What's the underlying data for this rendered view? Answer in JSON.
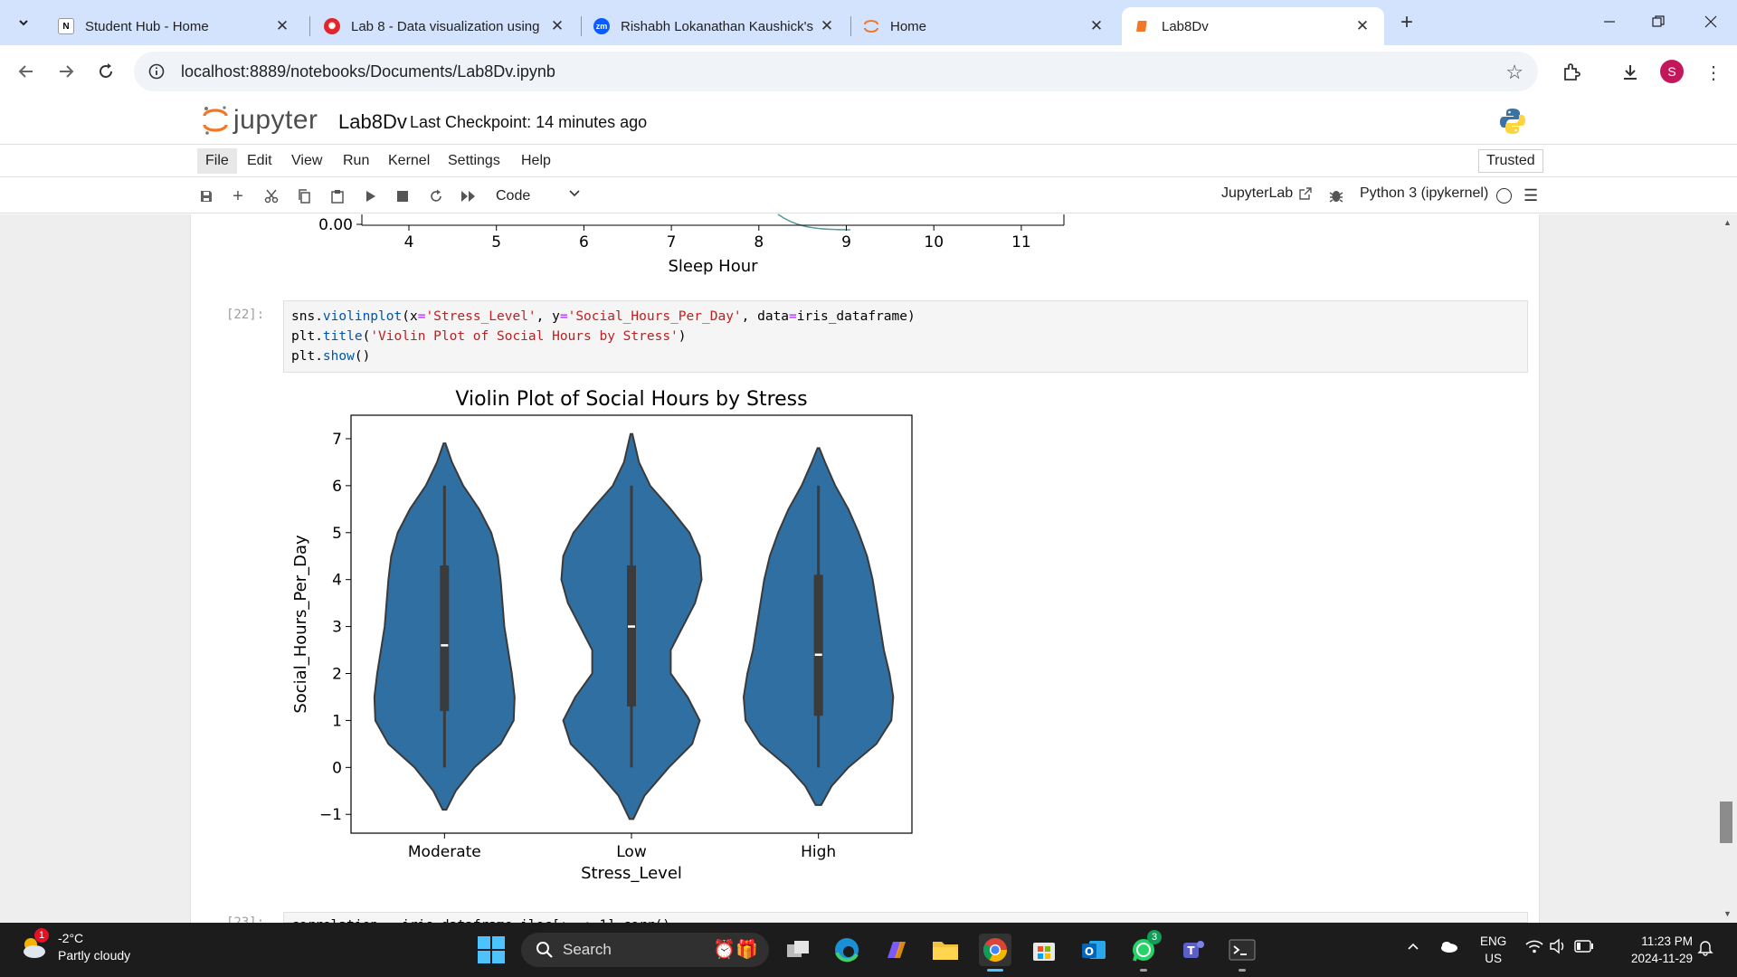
{
  "browser": {
    "tabs": [
      {
        "title": "Student Hub - Home",
        "favicon": "notion-icon",
        "active": false
      },
      {
        "title": "Lab 8 - Data visualization using",
        "favicon": "canvas-icon",
        "active": false
      },
      {
        "title": "Rishabh Lokanathan Kaushick's",
        "favicon": "zoom-icon",
        "active": false
      },
      {
        "title": "Home",
        "favicon": "jupyter-icon",
        "active": false
      },
      {
        "title": "Lab8Dv",
        "favicon": "notebook-icon",
        "active": true
      }
    ],
    "url": "localhost:8889/notebooks/Documents/Lab8Dv.ipynb",
    "profile_initial": "S"
  },
  "jupyter": {
    "logo_text": "jupyter",
    "notebook_name": "Lab8Dv",
    "checkpoint": "Last Checkpoint: 14 minutes ago",
    "menu": [
      "File",
      "Edit",
      "View",
      "Run",
      "Kernel",
      "Settings",
      "Help"
    ],
    "trusted": "Trusted",
    "cell_type": "Code",
    "jupyterlab_link": "JupyterLab",
    "kernel_name": "Python 3 (ipykernel)"
  },
  "prev_output": {
    "xlabel": "Sleep Hour",
    "y_tick": "0.00",
    "x_ticks": [
      "4",
      "5",
      "6",
      "7",
      "8",
      "9",
      "10",
      "11"
    ]
  },
  "cell": {
    "prompt": "[22]:",
    "code_lines": [
      "sns.violinplot(x='Stress_Level', y='Social_Hours_Per_Day', data=iris_dataframe)",
      "plt.title('Violin Plot of Social Hours by Stress')",
      "plt.show()"
    ]
  },
  "next_cell": {
    "prompt": "[23]:",
    "code_partial": "correlation = iris_dataframe.iloc[:, :-1].corr()"
  },
  "chart_data": {
    "type": "violin",
    "title": "Violin Plot of Social Hours by Stress",
    "xlabel": "Stress_Level",
    "ylabel": "Social_Hours_Per_Day",
    "categories": [
      "Moderate",
      "Low",
      "High"
    ],
    "ylim": [
      -1.4,
      7.5
    ],
    "y_ticks": [
      -1,
      0,
      1,
      2,
      3,
      4,
      5,
      6,
      7
    ],
    "fill_color": "#2f6fa2",
    "violins": [
      {
        "category": "Moderate",
        "min": -0.9,
        "max": 6.9,
        "whisker_low": 0,
        "whisker_high": 6,
        "q1": 1.2,
        "median": 2.6,
        "q3": 4.3,
        "density": [
          [
            -0.9,
            0.02
          ],
          [
            -0.5,
            0.12
          ],
          [
            0,
            0.32
          ],
          [
            0.5,
            0.6
          ],
          [
            1,
            0.74
          ],
          [
            1.5,
            0.75
          ],
          [
            2,
            0.72
          ],
          [
            2.5,
            0.68
          ],
          [
            3,
            0.64
          ],
          [
            3.5,
            0.62
          ],
          [
            4,
            0.6
          ],
          [
            4.5,
            0.57
          ],
          [
            5,
            0.5
          ],
          [
            5.5,
            0.37
          ],
          [
            6,
            0.2
          ],
          [
            6.5,
            0.08
          ],
          [
            6.9,
            0.01
          ]
        ]
      },
      {
        "category": "Low",
        "min": -1.1,
        "max": 7.1,
        "whisker_low": 0,
        "whisker_high": 6,
        "q1": 1.3,
        "median": 3.0,
        "q3": 4.3,
        "density": [
          [
            -1.1,
            0.02
          ],
          [
            -0.6,
            0.14
          ],
          [
            0,
            0.4
          ],
          [
            0.5,
            0.65
          ],
          [
            1,
            0.73
          ],
          [
            1.5,
            0.6
          ],
          [
            2,
            0.42
          ],
          [
            2.5,
            0.42
          ],
          [
            3,
            0.55
          ],
          [
            3.5,
            0.68
          ],
          [
            4,
            0.75
          ],
          [
            4.5,
            0.73
          ],
          [
            5,
            0.62
          ],
          [
            5.5,
            0.42
          ],
          [
            6,
            0.2
          ],
          [
            6.5,
            0.08
          ],
          [
            7.1,
            0.01
          ]
        ]
      },
      {
        "category": "High",
        "min": -0.8,
        "max": 6.8,
        "whisker_low": 0,
        "whisker_high": 6,
        "q1": 1.1,
        "median": 2.4,
        "q3": 4.1,
        "density": [
          [
            -0.8,
            0.03
          ],
          [
            -0.4,
            0.14
          ],
          [
            0,
            0.32
          ],
          [
            0.5,
            0.62
          ],
          [
            1,
            0.78
          ],
          [
            1.5,
            0.8
          ],
          [
            2,
            0.76
          ],
          [
            2.5,
            0.7
          ],
          [
            3,
            0.66
          ],
          [
            3.5,
            0.62
          ],
          [
            4,
            0.58
          ],
          [
            4.5,
            0.52
          ],
          [
            5,
            0.43
          ],
          [
            5.5,
            0.32
          ],
          [
            6,
            0.18
          ],
          [
            6.5,
            0.07
          ],
          [
            6.8,
            0.01
          ]
        ]
      }
    ]
  },
  "taskbar": {
    "weather_temp": "-2°C",
    "weather_desc": "Partly cloudy",
    "weather_badge": "1",
    "search_placeholder": "Search",
    "whatsapp_badge": "3",
    "lang_top": "ENG",
    "lang_bottom": "US",
    "time": "11:23 PM",
    "date": "2024-11-29"
  }
}
